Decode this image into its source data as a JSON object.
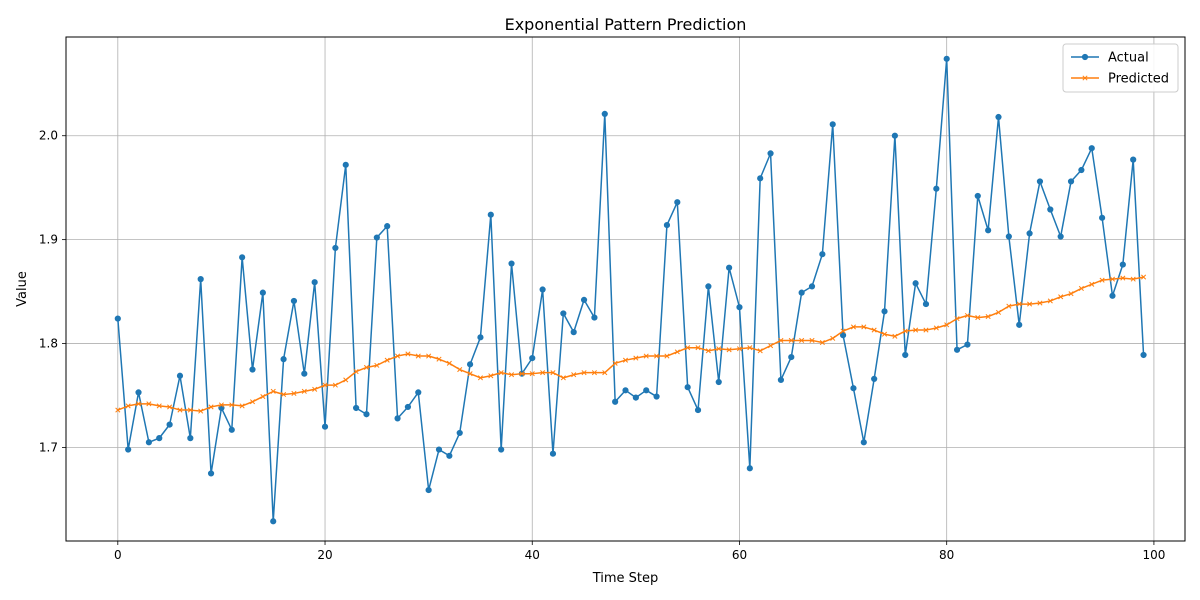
{
  "chart_data": {
    "type": "line",
    "title": "Exponential Pattern Prediction",
    "xlabel": "Time Step",
    "ylabel": "Value",
    "xlim": [
      -5,
      103
    ],
    "ylim": [
      1.61,
      2.095
    ],
    "xticks": [
      0,
      20,
      40,
      60,
      80,
      100
    ],
    "xtick_labels": [
      "0",
      "20",
      "40",
      "60",
      "80",
      "100"
    ],
    "yticks": [
      1.7,
      1.8,
      1.9,
      2.0
    ],
    "ytick_labels": [
      "1.7",
      "1.8",
      "1.9",
      "2.0"
    ],
    "grid": true,
    "legend_position": "top-right",
    "x": [
      0,
      1,
      2,
      3,
      4,
      5,
      6,
      7,
      8,
      9,
      10,
      11,
      12,
      13,
      14,
      15,
      16,
      17,
      18,
      19,
      20,
      21,
      22,
      23,
      24,
      25,
      26,
      27,
      28,
      29,
      30,
      31,
      32,
      33,
      34,
      35,
      36,
      37,
      38,
      39,
      40,
      41,
      42,
      43,
      44,
      45,
      46,
      47,
      48,
      49,
      50,
      51,
      52,
      53,
      54,
      55,
      56,
      57,
      58,
      59,
      60,
      61,
      62,
      63,
      64,
      65,
      66,
      67,
      68,
      69,
      70,
      71,
      72,
      73,
      74,
      75,
      76,
      77,
      78,
      79,
      80,
      81,
      82,
      83,
      84,
      85,
      86,
      87,
      88,
      89,
      90,
      91,
      92,
      93,
      94,
      95,
      96,
      97,
      98,
      99
    ],
    "series": [
      {
        "name": "Actual",
        "color": "#1f77b4",
        "marker": "circle",
        "values": [
          1.824,
          1.698,
          1.753,
          1.705,
          1.709,
          1.722,
          1.769,
          1.709,
          1.862,
          1.675,
          1.738,
          1.717,
          1.883,
          1.775,
          1.849,
          1.629,
          1.785,
          1.841,
          1.771,
          1.859,
          1.72,
          1.892,
          1.972,
          1.738,
          1.732,
          1.902,
          1.913,
          1.728,
          1.739,
          1.753,
          1.659,
          1.698,
          1.692,
          1.714,
          1.78,
          1.806,
          1.924,
          1.698,
          1.877,
          1.771,
          1.786,
          1.852,
          1.694,
          1.829,
          1.811,
          1.842,
          1.825,
          2.021,
          1.744,
          1.755,
          1.748,
          1.755,
          1.749,
          1.914,
          1.936,
          1.758,
          1.736,
          1.855,
          1.763,
          1.873,
          1.835,
          1.68,
          1.959,
          1.983,
          1.765,
          1.787,
          1.849,
          1.855,
          1.886,
          2.011,
          1.808,
          1.757,
          1.705,
          1.766,
          1.831,
          2.0,
          1.789,
          1.858,
          1.838,
          1.949,
          2.074,
          1.794,
          1.799,
          1.942,
          1.909,
          2.018,
          1.903,
          1.818,
          1.906,
          1.956,
          1.929,
          1.903,
          1.956,
          1.967,
          1.988,
          1.921,
          1.846,
          1.876,
          1.977,
          1.789
        ]
      },
      {
        "name": "Predicted",
        "color": "#ff7f0e",
        "marker": "x",
        "values": [
          1.736,
          1.74,
          1.742,
          1.742,
          1.74,
          1.739,
          1.736,
          1.736,
          1.735,
          1.739,
          1.741,
          1.741,
          1.74,
          1.744,
          1.749,
          1.754,
          1.751,
          1.752,
          1.754,
          1.756,
          1.76,
          1.76,
          1.765,
          1.773,
          1.777,
          1.779,
          1.784,
          1.788,
          1.79,
          1.788,
          1.788,
          1.785,
          1.781,
          1.775,
          1.771,
          1.767,
          1.769,
          1.772,
          1.77,
          1.771,
          1.771,
          1.772,
          1.772,
          1.767,
          1.77,
          1.772,
          1.772,
          1.772,
          1.781,
          1.784,
          1.786,
          1.788,
          1.788,
          1.788,
          1.792,
          1.796,
          1.796,
          1.793,
          1.795,
          1.794,
          1.795,
          1.796,
          1.793,
          1.798,
          1.803,
          1.803,
          1.803,
          1.803,
          1.801,
          1.805,
          1.812,
          1.816,
          1.816,
          1.813,
          1.809,
          1.807,
          1.812,
          1.813,
          1.813,
          1.815,
          1.818,
          1.824,
          1.827,
          1.825,
          1.826,
          1.83,
          1.836,
          1.838,
          1.838,
          1.839,
          1.841,
          1.845,
          1.848,
          1.853,
          1.857,
          1.861,
          1.862,
          1.863,
          1.862,
          1.864
        ]
      }
    ]
  }
}
